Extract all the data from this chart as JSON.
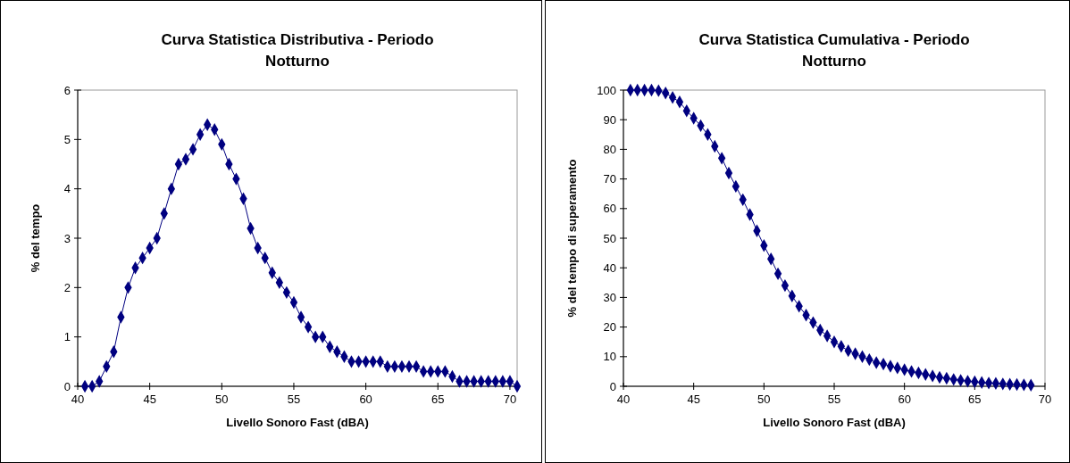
{
  "chart_data": [
    {
      "type": "line",
      "title": "Curva Statistica Distributiva - Periodo Notturno",
      "xlabel": "Livello Sonoro Fast (dBA)",
      "ylabel": "% del tempo",
      "marker": "diamond",
      "grid": false,
      "xlim": [
        40,
        70.5
      ],
      "xticks": [
        40,
        45,
        50,
        55,
        60,
        65,
        70
      ],
      "ylim": [
        0,
        6
      ],
      "yticks": [
        0,
        1,
        2,
        3,
        4,
        5,
        6
      ],
      "x": [
        40.5,
        41,
        41.5,
        42,
        42.5,
        43,
        43.5,
        44,
        44.5,
        45,
        45.5,
        46,
        46.5,
        47,
        47.5,
        48,
        48.5,
        49,
        49.5,
        50,
        50.5,
        51,
        51.5,
        52,
        52.5,
        53,
        53.5,
        54,
        54.5,
        55,
        55.5,
        56,
        56.5,
        57,
        57.5,
        58,
        58.5,
        59,
        59.5,
        60,
        60.5,
        61,
        61.5,
        62,
        62.5,
        63,
        63.5,
        64,
        64.5,
        65,
        65.5,
        66,
        66.5,
        67,
        67.5,
        68,
        68.5,
        69,
        69.5,
        70,
        70.5
      ],
      "series": [
        {
          "color": "#000080",
          "values": [
            0,
            0,
            0.1,
            0.4,
            0.7,
            1.4,
            2,
            2.4,
            2.6,
            2.8,
            3,
            3.5,
            4,
            4.5,
            4.6,
            4.8,
            5.1,
            5.3,
            5.2,
            4.9,
            4.5,
            4.2,
            3.8,
            3.2,
            2.8,
            2.6,
            2.3,
            2.1,
            1.9,
            1.7,
            1.4,
            1.2,
            1,
            1,
            0.8,
            0.7,
            0.6,
            0.5,
            0.5,
            0.5,
            0.5,
            0.5,
            0.4,
            0.4,
            0.4,
            0.4,
            0.4,
            0.3,
            0.3,
            0.3,
            0.3,
            0.2,
            0.1,
            0.1,
            0.1,
            0.1,
            0.1,
            0.1,
            0.1,
            0.1,
            0
          ]
        }
      ]
    },
    {
      "type": "line",
      "title": "Curva Statistica Cumulativa - Periodo Notturno",
      "xlabel": "Livello Sonoro Fast (dBA)",
      "ylabel": "% del tempo di superamento",
      "marker": "diamond",
      "grid": false,
      "xlim": [
        40,
        70
      ],
      "xticks": [
        40,
        45,
        50,
        55,
        60,
        65,
        70
      ],
      "ylim": [
        0,
        100
      ],
      "yticks": [
        0,
        10,
        20,
        30,
        40,
        50,
        60,
        70,
        80,
        90,
        100
      ],
      "x": [
        40.5,
        41,
        41.5,
        42,
        42.5,
        43,
        43.5,
        44,
        44.5,
        45,
        45.5,
        46,
        46.5,
        47,
        47.5,
        48,
        48.5,
        49,
        49.5,
        50,
        50.5,
        51,
        51.5,
        52,
        52.5,
        53,
        53.5,
        54,
        54.5,
        55,
        55.5,
        56,
        56.5,
        57,
        57.5,
        58,
        58.5,
        59,
        59.5,
        60,
        60.5,
        61,
        61.5,
        62,
        62.5,
        63,
        63.5,
        64,
        64.5,
        65,
        65.5,
        66,
        66.5,
        67,
        67.5,
        68,
        68.5,
        69
      ],
      "series": [
        {
          "color": "#000080",
          "values": [
            100,
            100,
            100,
            100,
            99.8,
            99,
            97.5,
            96,
            93,
            90.5,
            88,
            85,
            81,
            77,
            72,
            67.5,
            63,
            58,
            52.5,
            47.5,
            43,
            38,
            34,
            30.5,
            27,
            24,
            21.5,
            19,
            17,
            15,
            13.5,
            12,
            11,
            10,
            9,
            8,
            7.5,
            6.8,
            6.2,
            5.6,
            5,
            4.5,
            4,
            3.5,
            3,
            2.7,
            2.3,
            2,
            1.7,
            1.5,
            1.3,
            1.1,
            1,
            0.8,
            0.7,
            0.6,
            0.5,
            0.4
          ]
        }
      ]
    }
  ]
}
